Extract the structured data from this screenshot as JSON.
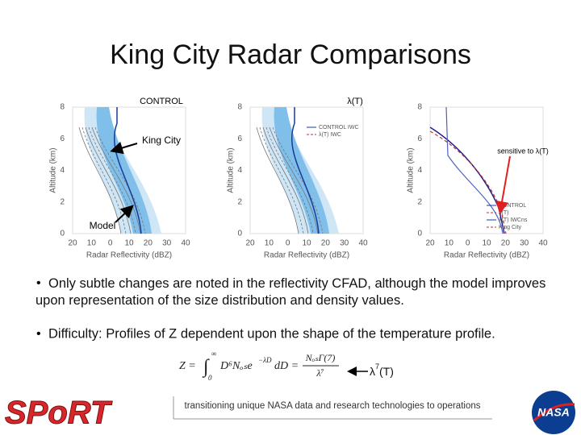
{
  "title": "King City Radar Comparisons",
  "panels": [
    {
      "label": "CONTROL",
      "y_ticks": [
        "8",
        "6",
        "4",
        "2",
        "0"
      ],
      "x_ticks": [
        "20",
        "10",
        "0",
        "10",
        "20",
        "30",
        "40"
      ],
      "x_label": "Radar Reflectivity (dBZ)",
      "y_label": "Altitude (km)",
      "legend": []
    },
    {
      "label": "λ(T)",
      "y_ticks": [
        "8",
        "6",
        "4",
        "2",
        "0"
      ],
      "x_ticks": [
        "20",
        "10",
        "0",
        "10",
        "20",
        "30",
        "40"
      ],
      "x_label": "Radar Reflectivity (dBZ)",
      "y_label": "Altitude (km)",
      "legend": [
        "CONTROL IWC",
        "λ(T) IWC"
      ]
    },
    {
      "label": "",
      "y_ticks": [
        "8",
        "6",
        "4",
        "2",
        "0"
      ],
      "x_ticks": [
        "20",
        "10",
        "0",
        "10",
        "20",
        "30",
        "40"
      ],
      "x_label": "Radar Reflectivity (dBZ)",
      "y_label": "Altitude (km)",
      "legend": [
        "CONTROL",
        "λ(T)",
        "λ(T) IWCns",
        "King City"
      ]
    }
  ],
  "annotations": {
    "king_city": "King City",
    "model": "Model",
    "sensitive": "sensitive to λ(T)"
  },
  "bullets": [
    "Only subtle changes are noted in the reflectivity CFAD, although the model improves upon representation of the size distribution and density values.",
    "Difficulty: Profiles of Z dependent upon the shape of the temperature profile."
  ],
  "formula": {
    "lhs": "Z =",
    "integral": "∫",
    "upper": "∞",
    "lower": "0",
    "integrand": "D⁶Nₒₛe",
    "exponent": "−λD",
    "tail": "dD =",
    "numerator": "NₒₛΓ(7)",
    "denominator": "λ⁷"
  },
  "formula_note": {
    "base": "λ",
    "sup": "7",
    "rest": "(T)"
  },
  "footer": {
    "logo_left": "SPoRT",
    "tagline": "transitioning unique NASA data and research technologies to operations",
    "logo_right": "NASA"
  }
}
